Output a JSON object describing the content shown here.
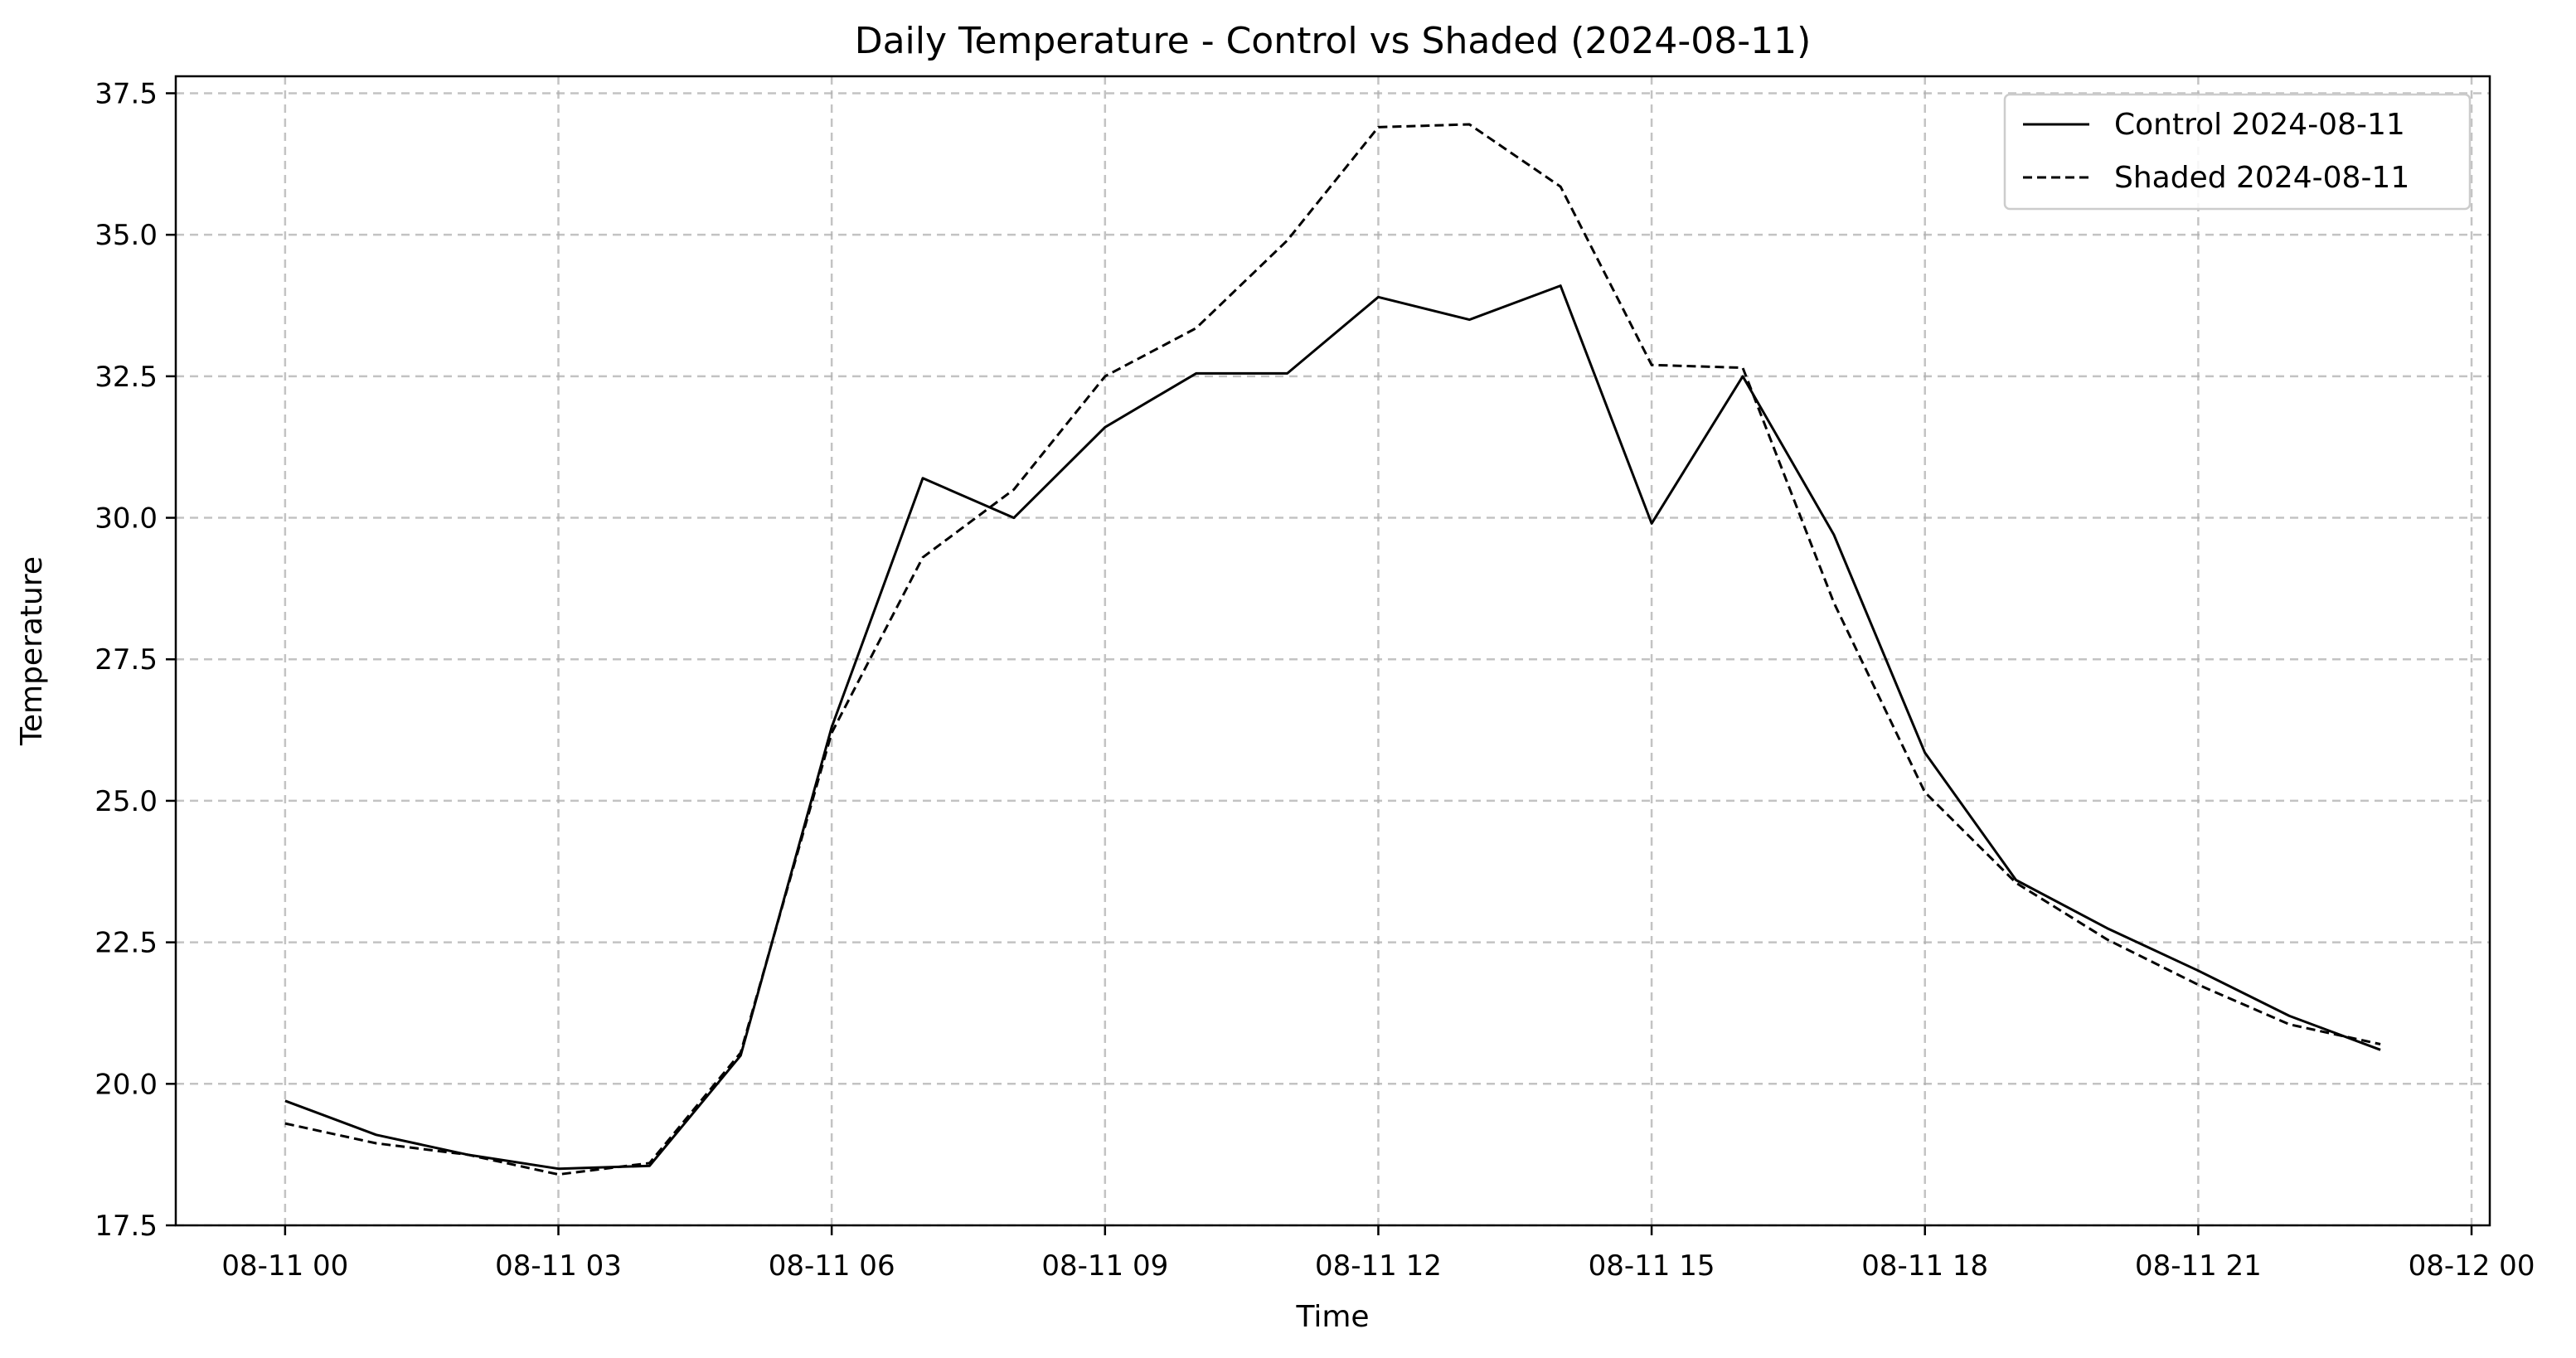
{
  "chart_data": {
    "type": "line",
    "title": "Daily Temperature - Control vs Shaded (2024-08-11)",
    "xlabel": "Time",
    "ylabel": "Temperature",
    "x": [
      "00:00",
      "01:00",
      "02:00",
      "03:00",
      "04:00",
      "05:00",
      "06:00",
      "07:00",
      "08:00",
      "09:00",
      "10:00",
      "11:00",
      "12:00",
      "13:00",
      "14:00",
      "15:00",
      "16:00",
      "17:00",
      "18:00",
      "19:00",
      "20:00",
      "21:00",
      "22:00",
      "23:00"
    ],
    "xlim": [
      -1.2,
      24.2
    ],
    "ylim": [
      17.5,
      37.8
    ],
    "x_ticks": [
      {
        "hour": 0,
        "label": "08-11 00"
      },
      {
        "hour": 3,
        "label": "08-11 03"
      },
      {
        "hour": 6,
        "label": "08-11 06"
      },
      {
        "hour": 9,
        "label": "08-11 09"
      },
      {
        "hour": 12,
        "label": "08-11 12"
      },
      {
        "hour": 15,
        "label": "08-11 15"
      },
      {
        "hour": 18,
        "label": "08-11 18"
      },
      {
        "hour": 21,
        "label": "08-11 21"
      },
      {
        "hour": 24,
        "label": "08-12 00"
      }
    ],
    "y_ticks": [
      {
        "value": 17.5,
        "label": "17.5"
      },
      {
        "value": 20.0,
        "label": "20.0"
      },
      {
        "value": 22.5,
        "label": "22.5"
      },
      {
        "value": 25.0,
        "label": "25.0"
      },
      {
        "value": 27.5,
        "label": "27.5"
      },
      {
        "value": 30.0,
        "label": "30.0"
      },
      {
        "value": 32.5,
        "label": "32.5"
      },
      {
        "value": 35.0,
        "label": "35.0"
      },
      {
        "value": 37.5,
        "label": "37.5"
      }
    ],
    "grid": true,
    "legend_position": "top-right",
    "series": [
      {
        "name": "Control 2024-08-11",
        "style": "solid",
        "color": "#000000",
        "values": [
          19.7,
          19.1,
          18.75,
          18.5,
          18.55,
          20.5,
          26.3,
          30.7,
          30.0,
          31.6,
          32.55,
          32.55,
          33.9,
          33.5,
          34.1,
          29.9,
          32.5,
          29.7,
          25.85,
          23.6,
          22.75,
          22.0,
          21.2,
          20.6
        ]
      },
      {
        "name": "Shaded 2024-08-11",
        "style": "dashed",
        "color": "#000000",
        "values": [
          19.3,
          18.95,
          18.75,
          18.4,
          18.6,
          20.55,
          26.2,
          29.3,
          30.5,
          32.5,
          33.35,
          34.9,
          36.9,
          36.95,
          35.85,
          32.7,
          32.65,
          28.5,
          25.15,
          23.55,
          22.55,
          21.75,
          21.05,
          20.7
        ]
      }
    ]
  }
}
